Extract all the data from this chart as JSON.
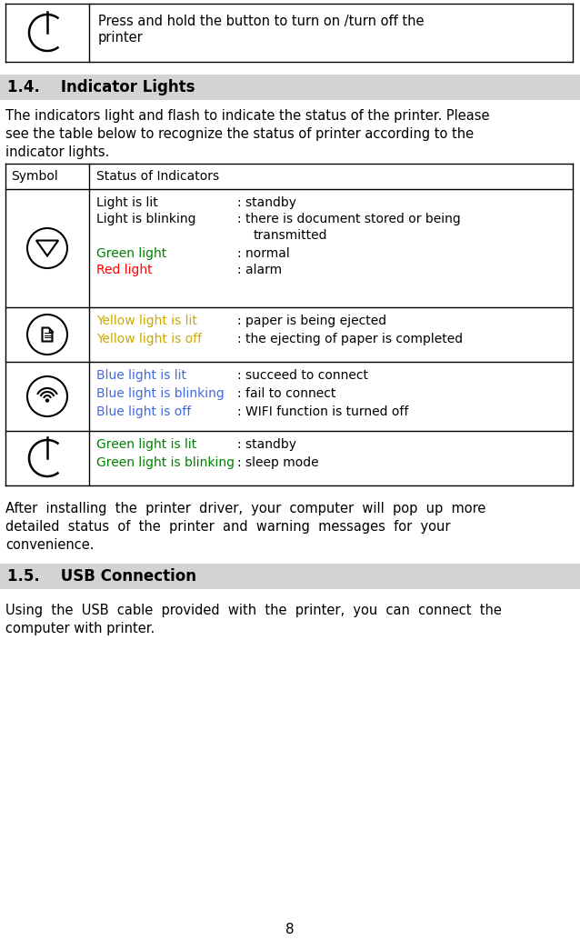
{
  "bg_color": "#ffffff",
  "header_bg": "#d3d3d3",
  "page_number": "8",
  "section_14_title": "1.4.    Indicator Lights",
  "section_15_title": "1.5.    USB Connection",
  "green_color": "#008000",
  "red_color": "#ff0000",
  "yellow_color": "#ccaa00",
  "blue_color": "#4169e1",
  "black_color": "#000000",
  "title_fontsize": 12,
  "body_fontsize": 10.5,
  "table_fontsize": 10
}
